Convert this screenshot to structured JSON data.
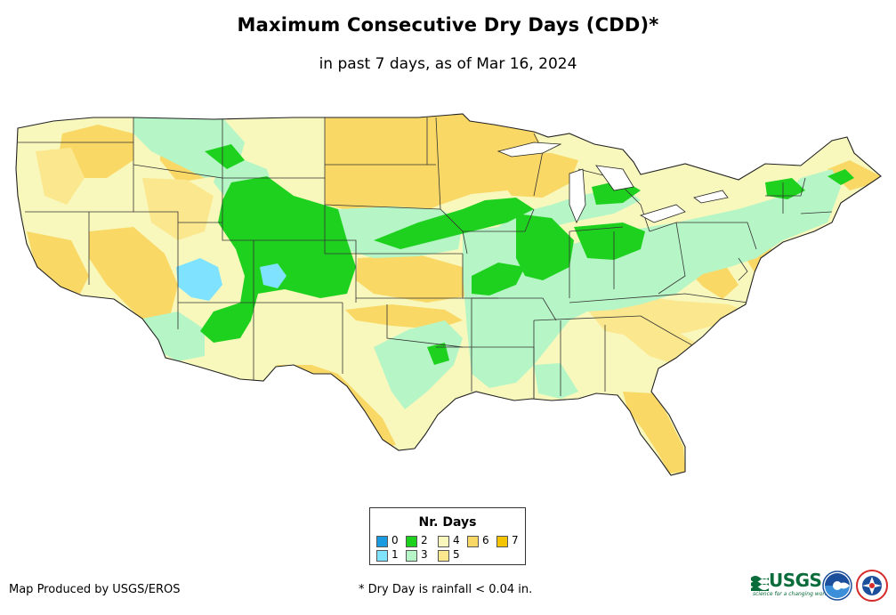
{
  "title": "Maximum Consecutive Dry Days (CDD)*",
  "subtitle": "in past 7 days, as of Mar 16, 2024",
  "legend": {
    "title": "Nr. Days",
    "items": [
      {
        "label": "0",
        "color": "#1a9be0"
      },
      {
        "label": "1",
        "color": "#7fe3ff"
      },
      {
        "label": "2",
        "color": "#1fd11f"
      },
      {
        "label": "3",
        "color": "#b6f5c6"
      },
      {
        "label": "4",
        "color": "#f8f8bd"
      },
      {
        "label": "5",
        "color": "#fbe78e"
      },
      {
        "label": "6",
        "color": "#f9d866"
      },
      {
        "label": "7",
        "color": "#f5c400"
      }
    ]
  },
  "footer": {
    "producer": "Map Produced by USGS/EROS",
    "note": "* Dry Day is rainfall < 0.04 in."
  },
  "logos": {
    "usgs": {
      "text": "USGS",
      "tagline": "science for a changing world",
      "color": "#0a6b3b"
    },
    "noaa": {
      "name": "noaa-logo",
      "color": "#1b4f9c"
    },
    "nws": {
      "name": "nws-logo",
      "color": "#d42a2a"
    }
  }
}
